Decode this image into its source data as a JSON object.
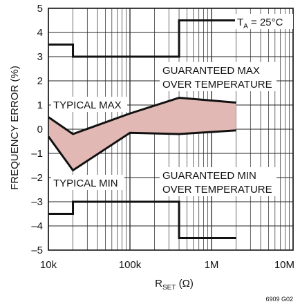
{
  "chart_data": {
    "type": "line",
    "x_scale": "log",
    "xlim": [
      10000,
      10000000
    ],
    "ylim": [
      -5,
      5
    ],
    "x_ticks": [
      {
        "value": 10000,
        "label": "10k"
      },
      {
        "value": 100000,
        "label": "100k"
      },
      {
        "value": 1000000,
        "label": "1M"
      },
      {
        "value": 10000000,
        "label": "10M"
      }
    ],
    "y_ticks": [
      {
        "value": 5,
        "label": "5"
      },
      {
        "value": 4,
        "label": "4"
      },
      {
        "value": 3,
        "label": "3"
      },
      {
        "value": 2,
        "label": "2"
      },
      {
        "value": 1,
        "label": "1"
      },
      {
        "value": 0,
        "label": "0"
      },
      {
        "value": -1,
        "label": "–1"
      },
      {
        "value": -2,
        "label": "–2"
      },
      {
        "value": -3,
        "label": "–3"
      },
      {
        "value": -4,
        "label": "–4"
      },
      {
        "value": -5,
        "label": "–5"
      }
    ],
    "xlabel": {
      "main": "R",
      "sub": "SET",
      "unit": " (Ω)"
    },
    "ylabel": "FREQUENCY ERROR (%)",
    "condition": {
      "main": "T",
      "sub": "A",
      "rest": " = 25°C"
    },
    "figure_id": "6909 G02",
    "grid": true,
    "series": [
      {
        "name": "GUARANTEED MAX OVER TEMPERATURE",
        "step": true,
        "x": [
          10000,
          20000,
          20000,
          400000,
          400000,
          2000000
        ],
        "y": [
          3.5,
          3.5,
          3.0,
          3.0,
          4.5,
          4.5
        ]
      },
      {
        "name": "GUARANTEED MIN OVER TEMPERATURE",
        "step": true,
        "x": [
          10000,
          20000,
          20000,
          400000,
          400000,
          2000000
        ],
        "y": [
          -3.5,
          -3.5,
          -3.0,
          -3.0,
          -4.5,
          -4.5
        ]
      },
      {
        "name": "TYPICAL MAX",
        "x": [
          10000,
          20000,
          100000,
          400000,
          2000000
        ],
        "y": [
          0.5,
          -0.2,
          0.65,
          1.3,
          1.1
        ]
      },
      {
        "name": "TYPICAL MIN",
        "x": [
          10000,
          20000,
          100000,
          400000,
          2000000
        ],
        "y": [
          -0.3,
          -1.7,
          -0.15,
          -0.2,
          -0.05
        ]
      }
    ],
    "annotations": [
      {
        "text": "TYPICAL MAX"
      },
      {
        "text": "TYPICAL MIN"
      },
      {
        "text": "GUARANTEED MAX"
      },
      {
        "text": "OVER TEMPERATURE"
      },
      {
        "text": "GUARANTEED MIN"
      },
      {
        "text": "OVER TEMPERATURE"
      }
    ],
    "band_color": "#e2b8b4",
    "line_color": "#111111"
  }
}
